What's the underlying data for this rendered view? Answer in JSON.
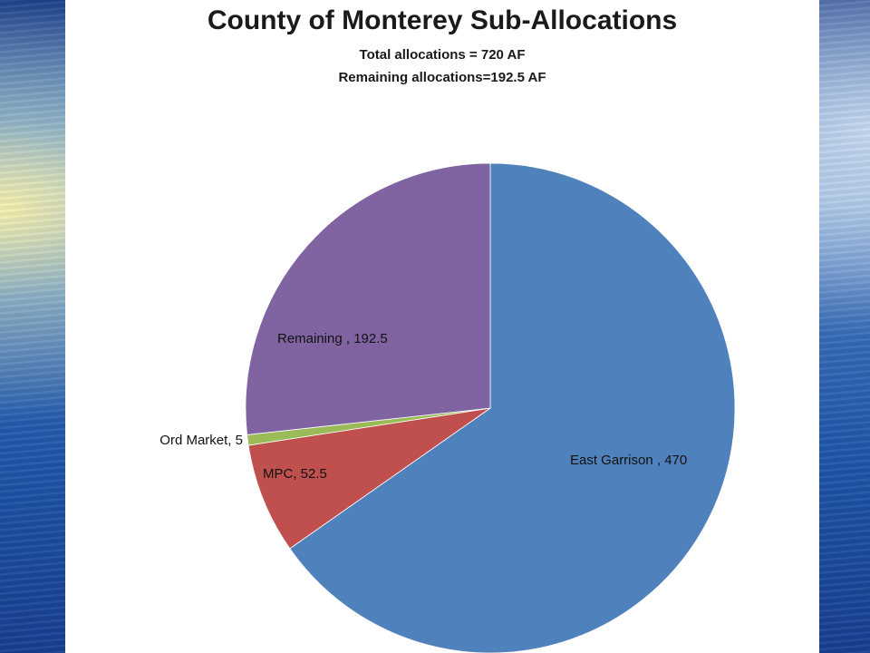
{
  "chart_data": {
    "type": "pie",
    "title": "County of Monterey Sub-Allocations",
    "subtitles": [
      "Total allocations = 720 AF",
      "Remaining allocations=192.5 AF"
    ],
    "slices": [
      {
        "label": "East Garrison",
        "value": 470,
        "data_label": "East Garrison , 470",
        "color": "#4f81bd"
      },
      {
        "label": "MPC",
        "value": 52.5,
        "data_label": "MPC, 52.5",
        "color": "#c0504d"
      },
      {
        "label": "Ord Market",
        "value": 5,
        "data_label": "Ord Market, 5",
        "color": "#9bbb59"
      },
      {
        "label": "Remaining",
        "value": 192.5,
        "data_label": "Remaining , 192.5",
        "color": "#8064a2"
      }
    ],
    "start": "12 o'clock",
    "direction": "clockwise",
    "legend": "none"
  }
}
